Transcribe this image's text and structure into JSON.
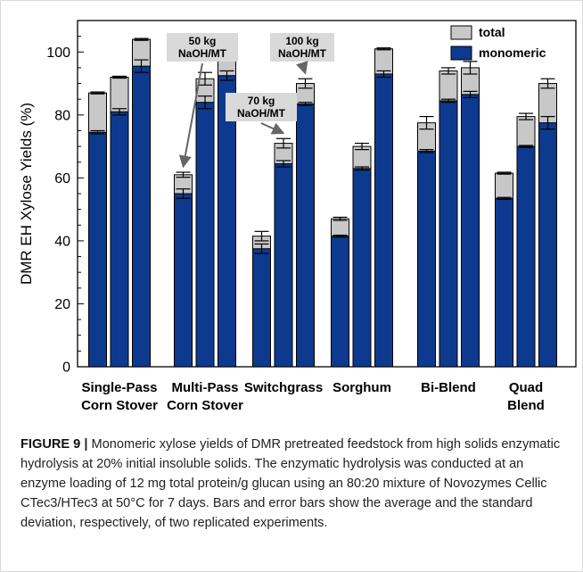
{
  "figure": {
    "label": "FIGURE 9",
    "separator": "|",
    "caption": "Monomeric xylose yields of DMR pretreated feedstock from high solids enzymatic hydrolysis at 20% initial insoluble solids. The enzymatic hydrolysis was conducted at an enzyme loading of 12 mg total protein/g glucan using an 80:20 mixture of Novozymes Cellic CTec3/HTec3 at 50°C for 7 days. Bars and error bars show the average and the standard deviation, respectively, of two replicated experiments."
  },
  "chart_data": {
    "type": "bar",
    "stacked": true,
    "title": "",
    "xlabel": "",
    "ylabel": "DMR EH Xylose Yields (%)",
    "ylim": [
      0,
      110
    ],
    "yticks": [
      0,
      20,
      40,
      60,
      80,
      100
    ],
    "grid": false,
    "legend": {
      "position": "top-right",
      "entries": [
        {
          "name": "total",
          "color": "#c8c8c8"
        },
        {
          "name": "monomeric",
          "color": "#0d3a8f"
        }
      ]
    },
    "groups": [
      {
        "label_lines": [
          "Single-Pass",
          "Corn Stover"
        ],
        "bars": [
          {
            "monomeric": 74.5,
            "total": 87.0,
            "mono_err": 0.5,
            "total_err": 0.3
          },
          {
            "monomeric": 81.0,
            "total": 92.0,
            "mono_err": 1.0,
            "total_err": 0.3
          },
          {
            "monomeric": 95.5,
            "total": 104.0,
            "mono_err": 2.0,
            "total_err": 0.3
          }
        ]
      },
      {
        "label_lines": [
          "Multi-Pass",
          "Corn Stover"
        ],
        "bars": [
          {
            "monomeric": 55.0,
            "total": 61.0,
            "mono_err": 1.5,
            "total_err": 0.8
          },
          {
            "monomeric": 84.0,
            "total": 91.5,
            "mono_err": 2.0,
            "total_err": 2.0
          },
          {
            "monomeric": 92.5,
            "total": 99.5,
            "mono_err": 1.5,
            "total_err": 1.5
          }
        ]
      },
      {
        "label_lines": [
          "Switchgrass"
        ],
        "bars": [
          {
            "monomeric": 37.5,
            "total": 41.5,
            "mono_err": 1.5,
            "total_err": 1.5
          },
          {
            "monomeric": 64.5,
            "total": 71.0,
            "mono_err": 1.0,
            "total_err": 1.5
          },
          {
            "monomeric": 83.5,
            "total": 90.0,
            "mono_err": 0.5,
            "total_err": 1.5
          }
        ]
      },
      {
        "label_lines": [
          "Sorghum"
        ],
        "bars": [
          {
            "monomeric": 41.5,
            "total": 47.0,
            "mono_err": 0.3,
            "total_err": 0.5
          },
          {
            "monomeric": 63.0,
            "total": 70.0,
            "mono_err": 0.5,
            "total_err": 1.0
          },
          {
            "monomeric": 93.0,
            "total": 101.0,
            "mono_err": 1.0,
            "total_err": 0.3
          }
        ]
      },
      {
        "label_lines": [
          "Bi-Blend"
        ],
        "bars": [
          {
            "monomeric": 68.5,
            "total": 77.5,
            "mono_err": 0.5,
            "total_err": 2.0
          },
          {
            "monomeric": 84.5,
            "total": 94.0,
            "mono_err": 0.5,
            "total_err": 1.0
          },
          {
            "monomeric": 86.5,
            "total": 95.0,
            "mono_err": 1.0,
            "total_err": 2.0
          }
        ]
      },
      {
        "label_lines": [
          "Quad",
          "Blend"
        ],
        "bars": [
          {
            "monomeric": 53.5,
            "total": 61.5,
            "mono_err": 0.3,
            "total_err": 0.3
          },
          {
            "monomeric": 70.0,
            "total": 79.5,
            "mono_err": 0.3,
            "total_err": 1.0
          },
          {
            "monomeric": 77.5,
            "total": 90.0,
            "mono_err": 2.0,
            "total_err": 1.5
          }
        ]
      }
    ],
    "annotations": [
      {
        "lines": [
          "50 kg",
          "NaOH/MT"
        ],
        "group": 1,
        "bar": 0
      },
      {
        "lines": [
          "70 kg",
          "NaOH/MT"
        ],
        "group": 2,
        "bar": 1
      },
      {
        "lines": [
          "100 kg",
          "NaOH/MT"
        ],
        "group": 2,
        "bar": 2
      }
    ]
  }
}
